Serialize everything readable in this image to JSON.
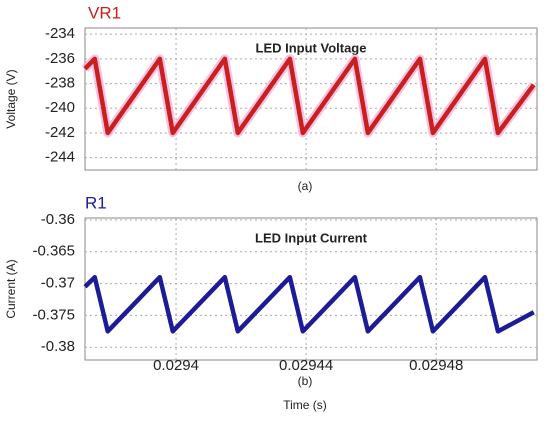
{
  "chart_data": [
    {
      "type": "line",
      "title": "LED Input Voltage",
      "ylabel": "Voltage (V)",
      "caption": "(a)",
      "x": [
        0.029372,
        0.029375,
        0.029379,
        0.029395,
        0.029399,
        0.029415,
        0.029419,
        0.029435,
        0.029439,
        0.029455,
        0.029459,
        0.029475,
        0.029479,
        0.029495,
        0.029499,
        0.02951
      ],
      "series": [
        {
          "name": "VR1",
          "color": "#c8201e",
          "values": [
            -236.8,
            -236,
            -242,
            -236,
            -242,
            -236,
            -242,
            -236,
            -242,
            -236,
            -242,
            -236,
            -242,
            -236,
            -242,
            -238.1
          ]
        }
      ],
      "xlim": [
        0.029372,
        0.029511
      ],
      "xticks": [
        0.0294,
        0.02944,
        0.02948
      ],
      "ylim": [
        -245,
        -233.5
      ],
      "yticks": [
        -234,
        -236,
        -238,
        -240,
        -242,
        -244
      ],
      "grid": true
    },
    {
      "type": "line",
      "title": "LED Input Current",
      "ylabel": "Current (A)",
      "caption": "(b)",
      "xlabel": "Time (s)",
      "x": [
        0.029372,
        0.029375,
        0.029379,
        0.029395,
        0.029399,
        0.029415,
        0.029419,
        0.029435,
        0.029439,
        0.029455,
        0.029459,
        0.029475,
        0.029479,
        0.029495,
        0.029499,
        0.02951
      ],
      "series": [
        {
          "name": "R1",
          "color": "#1c1c96",
          "values": [
            -0.3705,
            -0.369,
            -0.3775,
            -0.369,
            -0.3775,
            -0.369,
            -0.3775,
            -0.369,
            -0.3775,
            -0.369,
            -0.3775,
            -0.369,
            -0.3775,
            -0.369,
            -0.3775,
            -0.3745
          ]
        }
      ],
      "xlim": [
        0.029372,
        0.029511
      ],
      "xticks": [
        0.0294,
        0.02944,
        0.02948
      ],
      "ylim": [
        -0.382,
        -0.3597
      ],
      "yticks": [
        -0.36,
        -0.365,
        -0.37,
        -0.375,
        -0.38
      ],
      "grid": true
    }
  ]
}
